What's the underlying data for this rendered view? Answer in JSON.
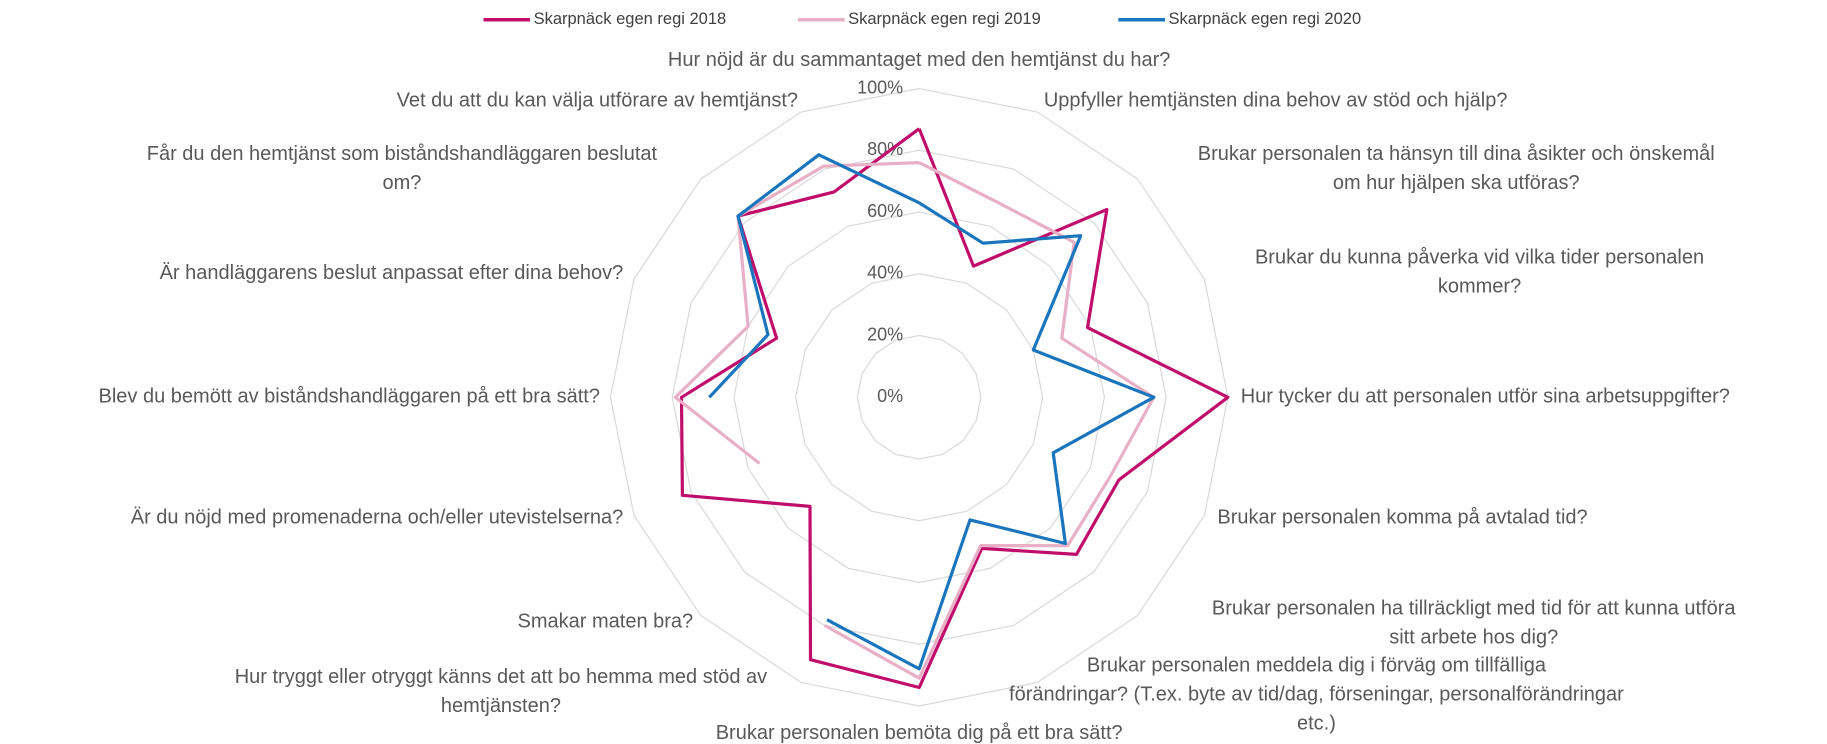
{
  "chart_data": {
    "type": "radar",
    "categories": [
      "Hur nöjd är du sammantaget med den hemtjänst du har?",
      "Uppfyller hemtjänsten dina behov av stöd och hjälp?",
      "Brukar personalen ta hänsyn till dina åsikter och önskemål om hur hjälpen ska utföras?",
      "Brukar du kunna påverka vid vilka tider personalen kommer?",
      "Hur tycker du att personalen utför sina arbetsuppgifter?",
      "Brukar personalen komma på avtalad tid?",
      "Brukar personalen ha tillräckligt med tid för att kunna utföra sitt arbete hos dig?",
      "Brukar personalen meddela dig i förväg om tillfälliga förändringar? (T.ex. byte av tid/dag, förseningar, personalförändringar etc.)",
      "Brukar personalen bemöta dig på ett bra sätt?",
      "Hur tryggt eller otryggt känns det att bo hemma med stöd av hemtjänsten?",
      "Smakar maten bra?",
      "Är du nöjd med promenaderna och/eller utevistelserna?",
      "Blev du bemött av biståndshandläggaren på ett bra sätt?",
      "Är handläggarens beslut anpassat efter dina behov?",
      "Får du den hemtjänst som biståndshandläggaren beslutat om?",
      "Vet du att du kan välja utförare av hemtjänst?"
    ],
    "series": [
      {
        "name": "Skarpnäck egen regi 2018",
        "color": "#c00d6b",
        "values": [
          87,
          46,
          86,
          59,
          100,
          70,
          72,
          53,
          94,
          92,
          50,
          83,
          77,
          50,
          83,
          72
        ]
      },
      {
        "name": "Skarpnäck egen regi 2019",
        "color": "#e8b0c6",
        "values": [
          76,
          68,
          71,
          50,
          76,
          67,
          68,
          52,
          91,
          80,
          null,
          56,
          79,
          60,
          83,
          81
        ]
      },
      {
        "name": "Skarpnäck egen regi 2020",
        "color": "#1a75bc",
        "values": [
          63,
          54,
          74,
          40,
          76,
          47,
          67,
          43,
          88,
          78,
          null,
          null,
          68,
          53,
          83,
          85
        ]
      }
    ],
    "ylim": [
      0,
      100
    ],
    "yticks": [
      {
        "value": 0,
        "label": "0%"
      },
      {
        "value": 20,
        "label": "20%"
      },
      {
        "value": 40,
        "label": "40%"
      },
      {
        "value": 60,
        "label": "60%"
      },
      {
        "value": 80,
        "label": "80%"
      },
      {
        "value": 100,
        "label": "100%"
      }
    ],
    "grid": true,
    "legend": "top"
  }
}
